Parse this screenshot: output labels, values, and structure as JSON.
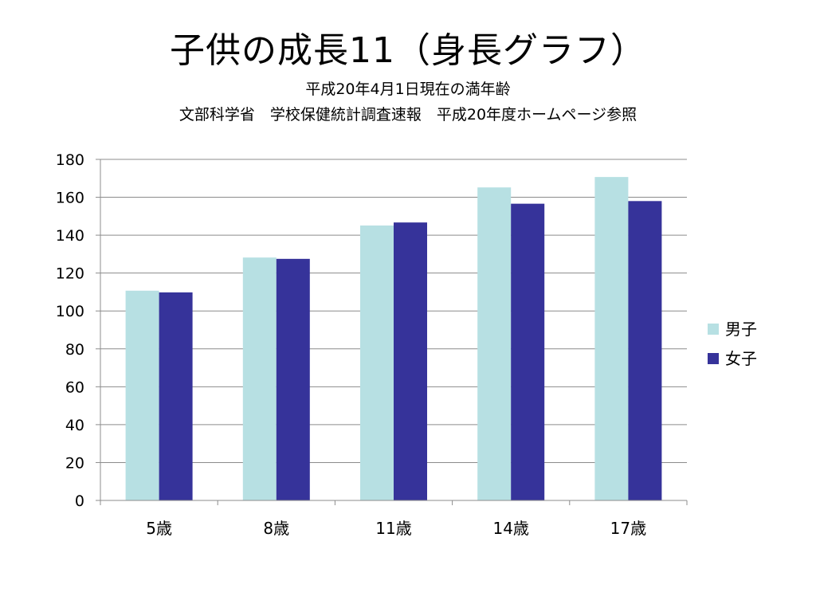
{
  "title": "子供の成長11（身長グラフ）",
  "subtitle_lines": [
    "平成20年4月1日現在の満年齢",
    "文部科学省　学校保健統計調査速報　平成20年度ホームページ参照"
  ],
  "colors": {
    "boys": "#b7e0e3",
    "girls": "#36339a",
    "grid": "#8c8c8c",
    "axis": "#8c8c8c"
  },
  "chart_data": {
    "type": "bar",
    "categories": [
      "5歳",
      "8歳",
      "11歳",
      "14歳",
      "17歳"
    ],
    "series": [
      {
        "name": "男子",
        "values": [
          110.7,
          128.2,
          145.1,
          165.2,
          170.7
        ]
      },
      {
        "name": "女子",
        "values": [
          109.8,
          127.5,
          146.7,
          156.6,
          158.0
        ]
      }
    ],
    "ylim": [
      0,
      180
    ],
    "y_ticks": [
      0,
      20,
      40,
      60,
      80,
      100,
      120,
      140,
      160,
      180
    ],
    "grid": true,
    "legend_position": "right",
    "xlabel": "",
    "ylabel": ""
  }
}
